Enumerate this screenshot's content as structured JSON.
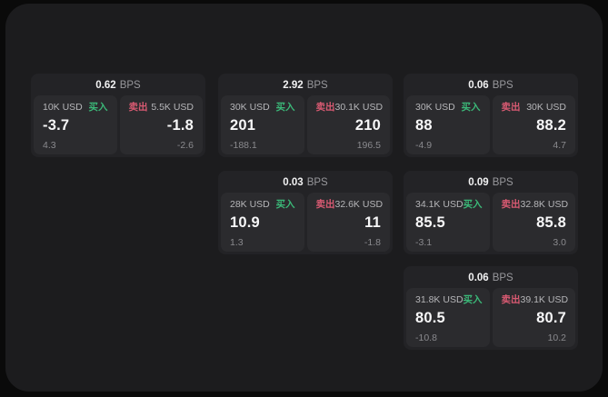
{
  "labels": {
    "bps_suffix": "BPS",
    "buy": "买入",
    "sell": "卖出"
  },
  "colors": {
    "background": "#0a0a0a",
    "panel": "#1c1c1e",
    "card": "#232326",
    "tile": "#2b2b2e",
    "buy_green": "#3bb878",
    "sell_red": "#d95a72",
    "price_text": "#f7f7f8",
    "muted_text": "#8a8a8e"
  },
  "cards": [
    {
      "row": 1,
      "col": 1,
      "bps": "0.62",
      "buy": {
        "size": "10K USD",
        "price": "-3.7",
        "delta": "4.3"
      },
      "sell": {
        "size": "5.5K USD",
        "price": "-1.8",
        "delta": "-2.6"
      }
    },
    {
      "row": 1,
      "col": 2,
      "bps": "2.92",
      "buy": {
        "size": "30K USD",
        "price": "201",
        "delta": "-188.1"
      },
      "sell": {
        "size": "30.1K USD",
        "price": "210",
        "delta": "196.5"
      }
    },
    {
      "row": 1,
      "col": 3,
      "bps": "0.06",
      "buy": {
        "size": "30K USD",
        "price": "88",
        "delta": "-4.9"
      },
      "sell": {
        "size": "30K USD",
        "price": "88.2",
        "delta": "4.7"
      }
    },
    {
      "row": 2,
      "col": 2,
      "bps": "0.03",
      "buy": {
        "size": "28K USD",
        "price": "10.9",
        "delta": "1.3"
      },
      "sell": {
        "size": "32.6K USD",
        "price": "11",
        "delta": "-1.8"
      }
    },
    {
      "row": 2,
      "col": 3,
      "bps": "0.09",
      "buy": {
        "size": "34.1K USD",
        "price": "85.5",
        "delta": "-3.1"
      },
      "sell": {
        "size": "32.8K USD",
        "price": "85.8",
        "delta": "3.0"
      }
    },
    {
      "row": 3,
      "col": 3,
      "bps": "0.06",
      "buy": {
        "size": "31.8K USD",
        "price": "80.5",
        "delta": "-10.8"
      },
      "sell": {
        "size": "39.1K USD",
        "price": "80.7",
        "delta": "10.2"
      }
    }
  ]
}
